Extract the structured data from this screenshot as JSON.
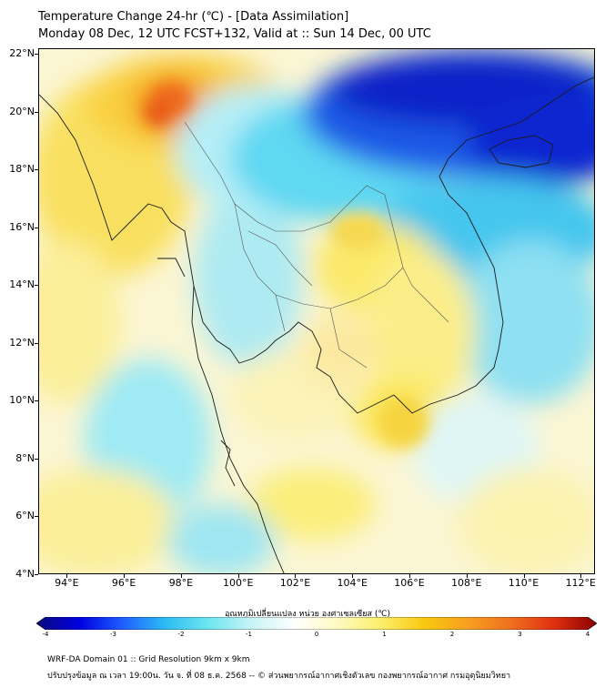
{
  "header": {
    "title_line1": "Temperature Change 24-hr (℃) - [Data Assimilation]",
    "title_line2": "Monday 08 Dec, 12 UTC FCST+132, Valid at :: Sun 14 Dec, 00 UTC"
  },
  "map": {
    "lat_ticks": [
      {
        "label": "22°N",
        "value": 22
      },
      {
        "label": "20°N",
        "value": 20
      },
      {
        "label": "18°N",
        "value": 18
      },
      {
        "label": "16°N",
        "value": 16
      },
      {
        "label": "14°N",
        "value": 14
      },
      {
        "label": "12°N",
        "value": 12
      },
      {
        "label": "10°N",
        "value": 10
      },
      {
        "label": "8°N",
        "value": 8
      },
      {
        "label": "6°N",
        "value": 6
      },
      {
        "label": "4°N",
        "value": 4
      }
    ],
    "lon_ticks": [
      {
        "label": "94°E",
        "value": 94
      },
      {
        "label": "96°E",
        "value": 96
      },
      {
        "label": "98°E",
        "value": 98
      },
      {
        "label": "100°E",
        "value": 100
      },
      {
        "label": "102°E",
        "value": 102
      },
      {
        "label": "104°E",
        "value": 104
      },
      {
        "label": "106°E",
        "value": 106
      },
      {
        "label": "108°E",
        "value": 108
      },
      {
        "label": "110°E",
        "value": 110
      },
      {
        "label": "112°E",
        "value": 112
      }
    ],
    "lon_range": [
      93,
      112.5
    ],
    "lat_range": [
      4,
      22.2
    ]
  },
  "colorbar": {
    "label": "อุณหภูมิเปลี่ยนแปลง หน่วย องศาเซลเซียส (℃)",
    "range": [
      -4,
      4
    ],
    "ticks": [
      "-4",
      "-3",
      "-2",
      "-1",
      "0",
      "1",
      "2",
      "3",
      "4"
    ],
    "colors": [
      "#0a0a7a",
      "#0000e0",
      "#1e5fff",
      "#2ebcf2",
      "#6ee6f0",
      "#c8f4f6",
      "#ffffff",
      "#fff9c0",
      "#fbee6a",
      "#f9c810",
      "#f8a020",
      "#f07020",
      "#e03010",
      "#8a0000"
    ]
  },
  "footer": {
    "line1": "WRF-DA Domain 01 :: Grid Resolution 9km x 9km",
    "line2": "ปรับปรุงข้อมูล ณ เวลา 19:00น. วัน จ. ที่ 08 ธ.ค. 2568 -- © ส่วนพยากรณ์อากาศเชิงตัวเลข กองพยากรณ์อากาศ กรมอุตุนิยมวิทยา"
  },
  "colors": {
    "ocean_neutral": "#fdfbe6",
    "cold_strong": "#1428d8",
    "cold_light": "#7ee4f4",
    "warm_light": "#fbf08a",
    "warm_strong": "#f47a18",
    "coast": "#222222"
  }
}
